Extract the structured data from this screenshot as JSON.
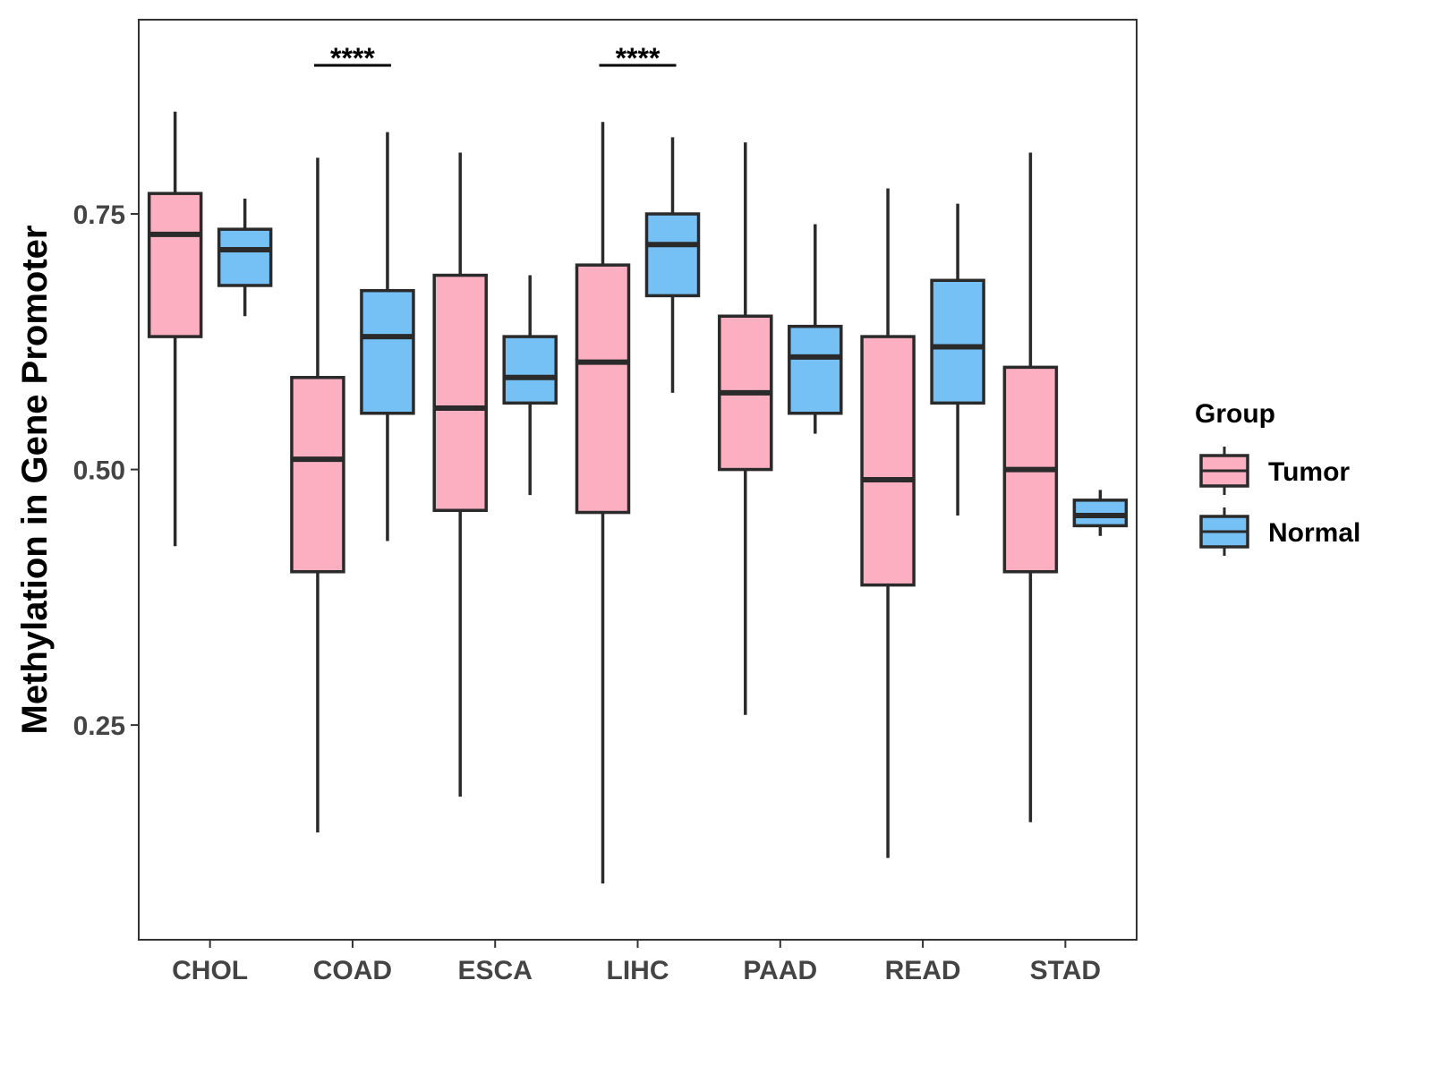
{
  "chart_data": {
    "type": "boxplot",
    "title": "",
    "xlabel": "",
    "ylabel": "Methylation in Gene Promoter",
    "ylim": [
      0.04,
      0.94
    ],
    "yticks": [
      {
        "value": 0.25,
        "label": "0.25"
      },
      {
        "value": 0.5,
        "label": "0.50"
      },
      {
        "value": 0.75,
        "label": "0.75"
      }
    ],
    "categories": [
      "CHOL",
      "COAD",
      "ESCA",
      "LIHC",
      "PAAD",
      "READ",
      "STAD"
    ],
    "legend": {
      "title": "Group",
      "position": "right",
      "items": [
        {
          "name": "Tumor",
          "color": "#FBAFC0"
        },
        {
          "name": "Normal",
          "color": "#75C0F5"
        }
      ]
    },
    "series": [
      {
        "name": "Tumor",
        "color": "#FBAFC0",
        "boxes": [
          {
            "min": 0.425,
            "q1": 0.63,
            "median": 0.73,
            "q3": 0.77,
            "max": 0.85
          },
          {
            "min": 0.145,
            "q1": 0.4,
            "median": 0.51,
            "q3": 0.59,
            "max": 0.805
          },
          {
            "min": 0.18,
            "q1": 0.46,
            "median": 0.56,
            "q3": 0.69,
            "max": 0.81
          },
          {
            "min": 0.095,
            "q1": 0.458,
            "median": 0.605,
            "q3": 0.7,
            "max": 0.84
          },
          {
            "min": 0.26,
            "q1": 0.5,
            "median": 0.575,
            "q3": 0.65,
            "max": 0.82
          },
          {
            "min": 0.12,
            "q1": 0.387,
            "median": 0.49,
            "q3": 0.63,
            "max": 0.775
          },
          {
            "min": 0.155,
            "q1": 0.4,
            "median": 0.5,
            "q3": 0.6,
            "max": 0.81
          }
        ]
      },
      {
        "name": "Normal",
        "color": "#75C0F5",
        "boxes": [
          {
            "min": 0.65,
            "q1": 0.68,
            "median": 0.715,
            "q3": 0.735,
            "max": 0.765
          },
          {
            "min": 0.43,
            "q1": 0.555,
            "median": 0.63,
            "q3": 0.675,
            "max": 0.83
          },
          {
            "min": 0.475,
            "q1": 0.565,
            "median": 0.59,
            "q3": 0.63,
            "max": 0.69
          },
          {
            "min": 0.575,
            "q1": 0.67,
            "median": 0.72,
            "q3": 0.75,
            "max": 0.825
          },
          {
            "min": 0.535,
            "q1": 0.555,
            "median": 0.61,
            "q3": 0.64,
            "max": 0.74
          },
          {
            "min": 0.455,
            "q1": 0.565,
            "median": 0.62,
            "q3": 0.685,
            "max": 0.76
          },
          {
            "min": 0.435,
            "q1": 0.445,
            "median": 0.455,
            "q3": 0.47,
            "max": 0.48
          }
        ]
      }
    ],
    "annotations": [
      {
        "category": "COAD",
        "label": "****"
      },
      {
        "category": "LIHC",
        "label": "****"
      }
    ]
  }
}
